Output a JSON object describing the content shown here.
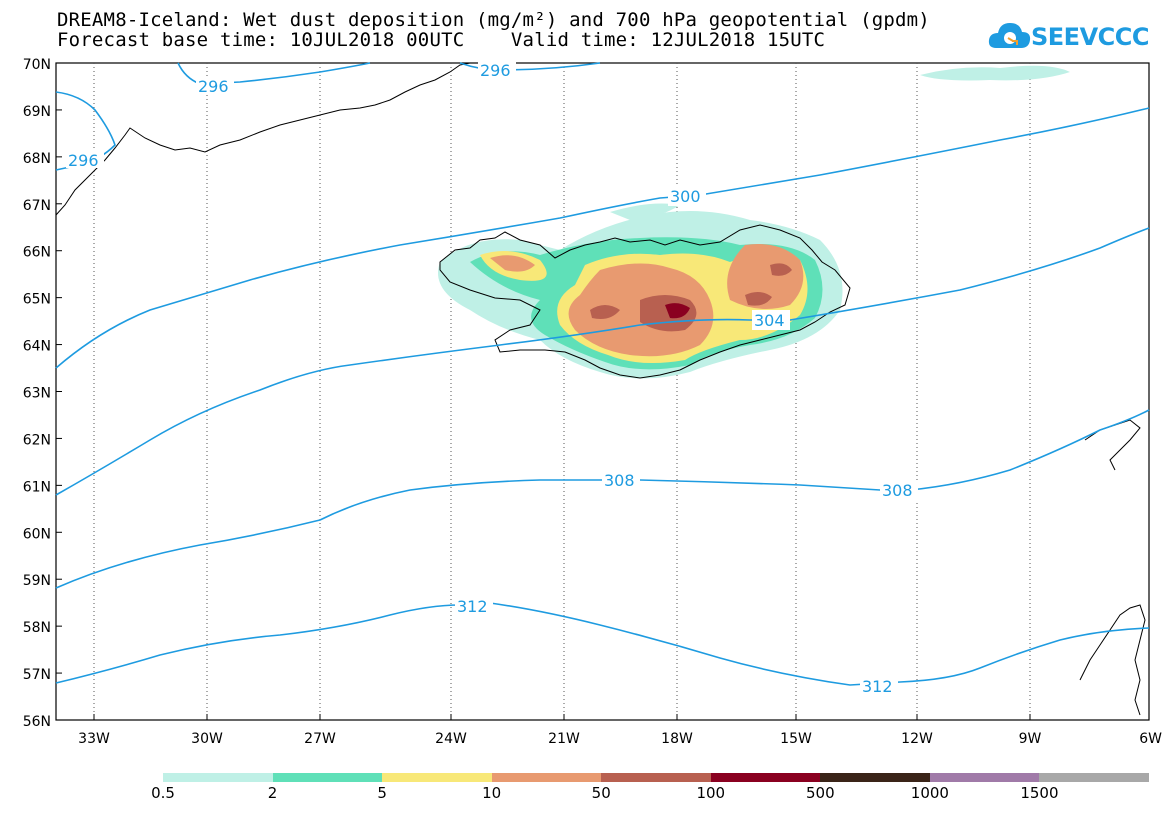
{
  "title_line1": "DREAM8-Iceland: Wet dust deposition (mg/m²) and 700 hPa geopotential (gpdm)",
  "title_line2": "Forecast base time: 10JUL2018 00UTC    Valid time: 12JUL2018 15UTC",
  "logo_text": "SEEVCCC",
  "lat_labels": [
    "70N",
    "69N",
    "68N",
    "67N",
    "66N",
    "65N",
    "64N",
    "63N",
    "62N",
    "61N",
    "60N",
    "59N",
    "58N",
    "57N",
    "56N"
  ],
  "lon_labels": [
    "33W",
    "30W",
    "27W",
    "24W",
    "21W",
    "18W",
    "15W",
    "12W",
    "9W",
    "6W"
  ],
  "contour_labels": {
    "c296a": "296",
    "c296b": "296",
    "c296c": "296",
    "c300": "300",
    "c304": "304",
    "c308a": "308",
    "c308b": "308",
    "c312a": "312",
    "c312b": "312"
  },
  "colorbar": {
    "colors": [
      "#bff0e6",
      "#5fe0b8",
      "#f8e878",
      "#e89a70",
      "#b86050",
      "#8a0020",
      "#3a2418",
      "#a07aa8",
      "#a8a8a8"
    ],
    "labels": [
      "0.5",
      "2",
      "5",
      "10",
      "50",
      "100",
      "500",
      "1000",
      "1500"
    ]
  },
  "colors": {
    "contour": "#1e9be0",
    "coast": "#000000",
    "grid": "#555555"
  }
}
